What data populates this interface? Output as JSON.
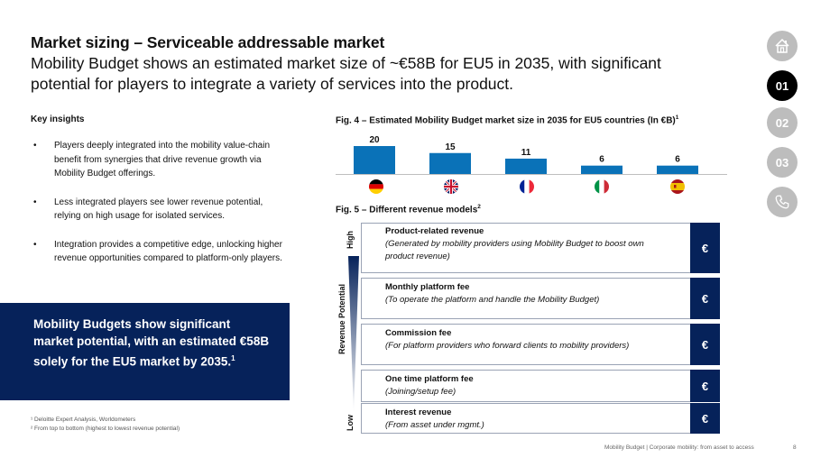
{
  "header": {
    "title": "Market sizing – Serviceable addressable market",
    "subtitle": "Mobility Budget shows an estimated market size of ~€58B for EU5 in 2035, with significant potential for players to integrate a variety of services into the product."
  },
  "nav": {
    "items": [
      {
        "label": "",
        "icon": "home-icon",
        "active": false
      },
      {
        "label": "01",
        "active": true
      },
      {
        "label": "02",
        "active": false
      },
      {
        "label": "03",
        "active": false
      },
      {
        "label": "",
        "icon": "phone-icon",
        "active": false
      }
    ]
  },
  "insights": {
    "title": "Key insights",
    "bullets": [
      "Players deeply integrated into the mobility value-chain benefit from synergies that drive revenue growth via Mobility Budget offerings.",
      "Less integrated players see lower revenue potential, relying on high usage for isolated services.",
      "Integration provides a competitive edge, unlocking higher revenue opportunities compared to platform-only players."
    ]
  },
  "callout": {
    "text": "Mobility Budgets show significant market potential, with an estimated €58B solely for the EU5 market by 2035.",
    "sup": "1"
  },
  "footnotes": {
    "note1": "¹ Deloitte Expert Analysis, Worldometers",
    "note2": "² From top to bottom (highest to lowest revenue potential)"
  },
  "chart_data": {
    "type": "bar",
    "title": "Fig. 4 – Estimated Mobility Budget market size in 2035 for EU5 countries (In €B)",
    "title_sup": "1",
    "categories": [
      "Germany",
      "United Kingdom",
      "France",
      "Italy",
      "Spain"
    ],
    "values": [
      20,
      15,
      11,
      6,
      6
    ],
    "ylim": [
      0,
      20
    ],
    "bar_color": "#0a72b8",
    "grid": false,
    "legend": "none"
  },
  "fig5": {
    "title": "Fig. 5 – Different revenue models",
    "title_sup": "2",
    "axis_label": "Revenue Potential",
    "high_label": "High",
    "low_label": "Low",
    "euro_symbol": "€",
    "rows": [
      {
        "name": "Product-related revenue",
        "desc": "(Generated by mobility providers using Mobility Budget to boost own product revenue)"
      },
      {
        "name": "Monthly platform fee",
        "desc": "(To operate the platform and handle the Mobility Budget)"
      },
      {
        "name": "Commission fee",
        "desc": "(For platform providers who forward clients to mobility providers)"
      },
      {
        "name": "One time platform fee",
        "desc": "(Joining/setup fee)"
      },
      {
        "name": "Interest revenue",
        "desc": "(From asset under mgmt.)"
      }
    ]
  },
  "footer": {
    "text": "Mobility Budget | Corporate mobility: from asset to access",
    "page": "8"
  },
  "colors": {
    "navy": "#06225a",
    "bar": "#0a72b8",
    "nav_gray": "#bdbdbd"
  }
}
